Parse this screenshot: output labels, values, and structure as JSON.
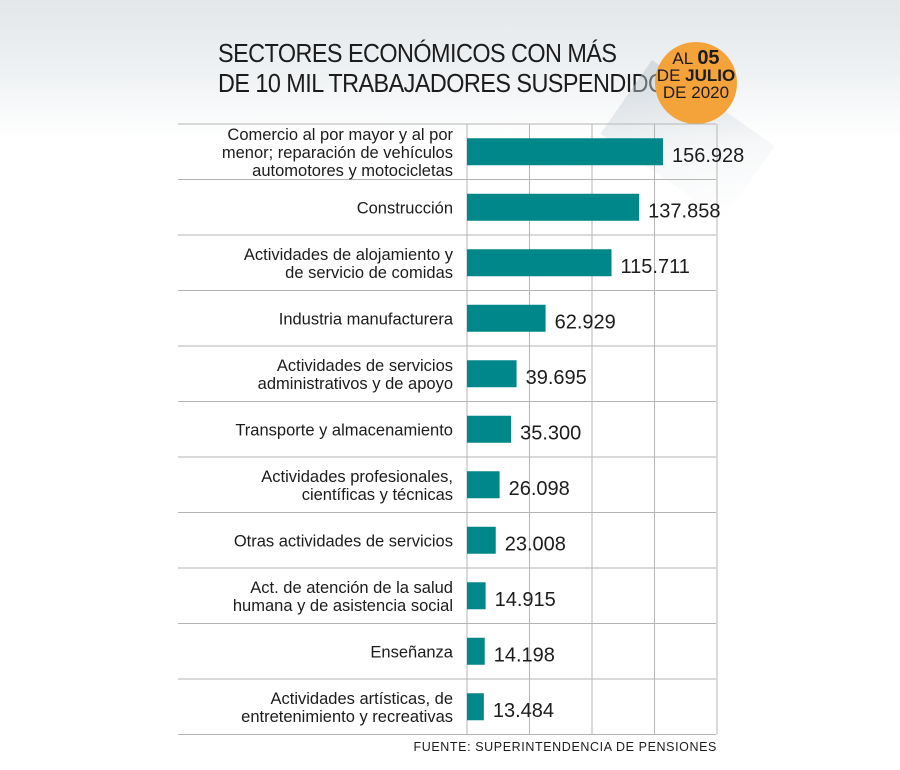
{
  "title_lines": [
    "SECTORES ECONÓMICOS CON MÁS",
    "DE 10 MIL TRABAJADORES SUSPENDIDOS"
  ],
  "badge": {
    "line1_prefix": "AL ",
    "line1_day": "05",
    "line2_prefix": "DE ",
    "line2_month": "JULIO",
    "line3": "DE 2020"
  },
  "source": "FUENTE: SUPERINTENDENCIA DE PENSIONES",
  "colors": {
    "bar": "#00878a",
    "grid": "#b5b5b5",
    "badge": "#f4a23a"
  },
  "chart_data": {
    "type": "bar",
    "orientation": "horizontal",
    "title": "SECTORES ECONÓMICOS CON MÁS DE 10 MIL TRABAJADORES SUSPENDIDOS",
    "categories": [
      [
        "Comercio al por mayor y al por",
        "menor; reparación de vehículos",
        "automotores y motocicletas"
      ],
      [
        "Construcción"
      ],
      [
        "Actividades de alojamiento y",
        "de servicio de comidas"
      ],
      [
        "Industria manufacturera"
      ],
      [
        "Actividades de servicios",
        "administrativos y de apoyo"
      ],
      [
        "Transporte y almacenamiento"
      ],
      [
        "Actividades profesionales,",
        "científicas y técnicas"
      ],
      [
        "Otras actividades de servicios"
      ],
      [
        "Act. de atención de la salud",
        "humana y de asistencia social"
      ],
      [
        "Enseñanza"
      ],
      [
        "Actividades artísticas, de",
        "entretenimiento y recreativas"
      ]
    ],
    "values": [
      156928,
      137858,
      115711,
      62929,
      39695,
      35300,
      26098,
      23008,
      14915,
      14198,
      13484
    ],
    "value_labels": [
      "156.928",
      "137.858",
      "115.711",
      "62.929",
      "39.695",
      "35.300",
      "26.098",
      "23.008",
      "14.915",
      "14.198",
      "13.484"
    ],
    "xlim": [
      0,
      200000
    ],
    "grid": true,
    "xlabel": "",
    "ylabel": ""
  }
}
